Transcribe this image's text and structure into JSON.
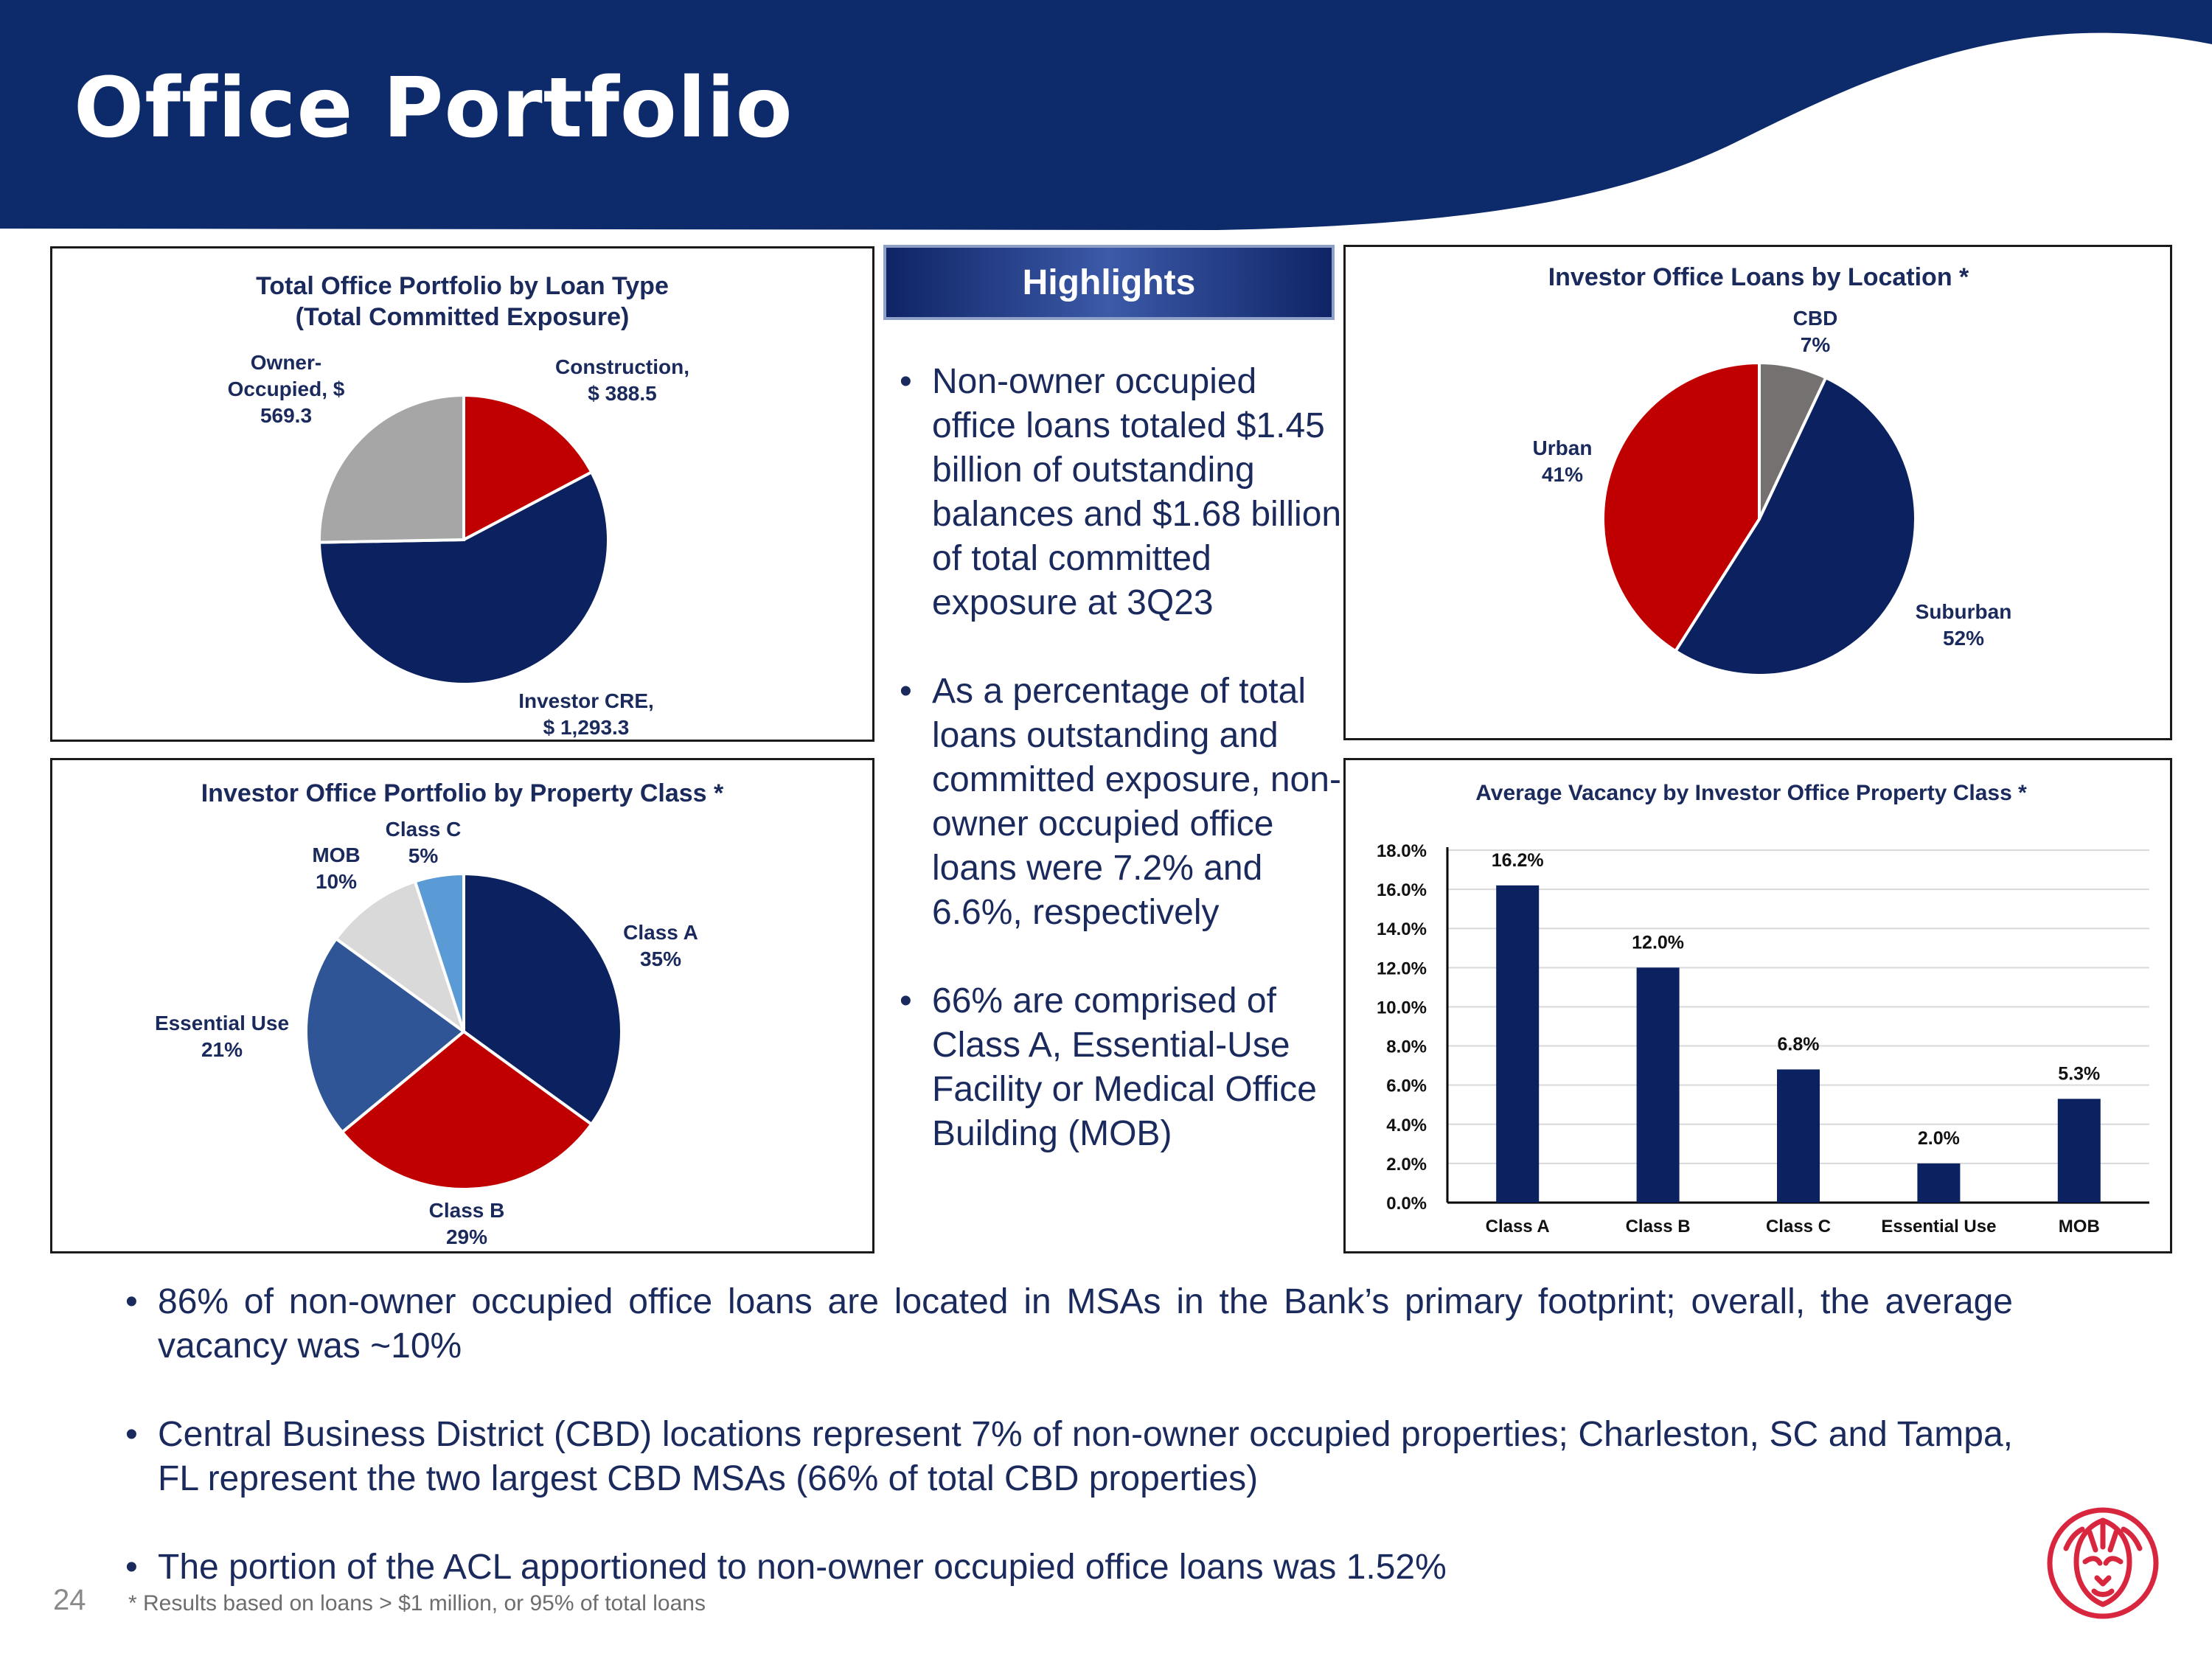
{
  "page": {
    "title": "Office Portfolio",
    "page_number": "24",
    "footnote": "* Results based on loans > $1 million, or 95% of total loans",
    "colors": {
      "navy": "#0d2a6b",
      "chart_navy": "#0b2160",
      "red": "#c00000",
      "gray": "#a6a6a6",
      "dark_gray": "#767171",
      "light_gray": "#d9d9d9",
      "mid_blue": "#2f5597",
      "light_blue": "#5b9bd5",
      "logo_red": "#d9263f"
    }
  },
  "highlights": {
    "banner": "Highlights",
    "bullets": [
      "Non-owner occupied office loans totaled $1.45 billion of outstanding balances and $1.68 billion of total committed exposure at 3Q23",
      "As a percentage of total loans outstanding and committed exposure, non-owner occupied office loans were 7.2% and 6.6%, respectively",
      "66% are comprised of Class A, Essential-Use Facility or Medical Office Building (MOB)"
    ]
  },
  "bottom_bullets": [
    "86% of non-owner occupied office loans are located in MSAs in the Bank’s primary footprint; overall, the average vacancy was ~10%",
    "Central Business District (CBD) locations represent 7% of non-owner occupied properties; Charleston, SC and Tampa, FL represent the two largest CBD MSAs (66% of total CBD properties)",
    "The portion of the ACL apportioned to non-owner occupied office loans was 1.52%"
  ],
  "chart_data": [
    {
      "id": "loan-type",
      "type": "pie",
      "title_lines": [
        "Total Office Portfolio by Loan Type",
        "(Total Committed Exposure)"
      ],
      "slices": [
        {
          "name": "Construction",
          "value": 388.5,
          "label_lines": [
            "Construction,",
            "$ 388.5"
          ],
          "color": "#c00000"
        },
        {
          "name": "Investor CRE",
          "value": 1293.3,
          "label_lines": [
            "Investor CRE,",
            "$ 1,293.3"
          ],
          "color": "#0b2160"
        },
        {
          "name": "Owner-Occupied",
          "value": 569.3,
          "label_lines": [
            "Owner-",
            "Occupied, $",
            "569.3"
          ],
          "color": "#a6a6a6"
        }
      ]
    },
    {
      "id": "location",
      "type": "pie",
      "title_lines": [
        "Investor Office Loans by Location *"
      ],
      "slices": [
        {
          "name": "CBD",
          "value": 7,
          "label_lines": [
            "CBD",
            "7%"
          ],
          "color": "#767171"
        },
        {
          "name": "Suburban",
          "value": 52,
          "label_lines": [
            "Suburban",
            "52%"
          ],
          "color": "#0b2160"
        },
        {
          "name": "Urban",
          "value": 41,
          "label_lines": [
            "Urban",
            "41%"
          ],
          "color": "#c00000"
        }
      ]
    },
    {
      "id": "property-class",
      "type": "pie",
      "title_lines": [
        "Investor Office Portfolio by Property Class *"
      ],
      "slices": [
        {
          "name": "Class A",
          "value": 35,
          "label_lines": [
            "Class A",
            "35%"
          ],
          "color": "#0b2160"
        },
        {
          "name": "Class B",
          "value": 29,
          "label_lines": [
            "Class B",
            "29%"
          ],
          "color": "#c00000"
        },
        {
          "name": "Essential Use",
          "value": 21,
          "label_lines": [
            "Essential Use",
            "21%"
          ],
          "color": "#2f5597"
        },
        {
          "name": "MOB",
          "value": 10,
          "label_lines": [
            "MOB",
            "10%"
          ],
          "color": "#d9d9d9"
        },
        {
          "name": "Class C",
          "value": 5,
          "label_lines": [
            "Class C",
            "5%"
          ],
          "color": "#5b9bd5"
        }
      ]
    },
    {
      "id": "vacancy",
      "type": "bar",
      "title": "Average Vacancy by Investor Office Property Class *",
      "categories": [
        "Class A",
        "Class B",
        "Class C",
        "Essential Use",
        "MOB"
      ],
      "values": [
        16.2,
        12.0,
        6.8,
        2.0,
        5.3
      ],
      "value_labels": [
        "16.2%",
        "12.0%",
        "6.8%",
        "2.0%",
        "5.3%"
      ],
      "ylim": [
        0,
        18
      ],
      "yticks": [
        0,
        2,
        4,
        6,
        8,
        10,
        12,
        14,
        16,
        18
      ],
      "ytick_labels": [
        "0.0%",
        "2.0%",
        "4.0%",
        "6.0%",
        "8.0%",
        "10.0%",
        "12.0%",
        "14.0%",
        "16.0%",
        "18.0%"
      ],
      "grid": true,
      "color": "#0b2160"
    }
  ]
}
